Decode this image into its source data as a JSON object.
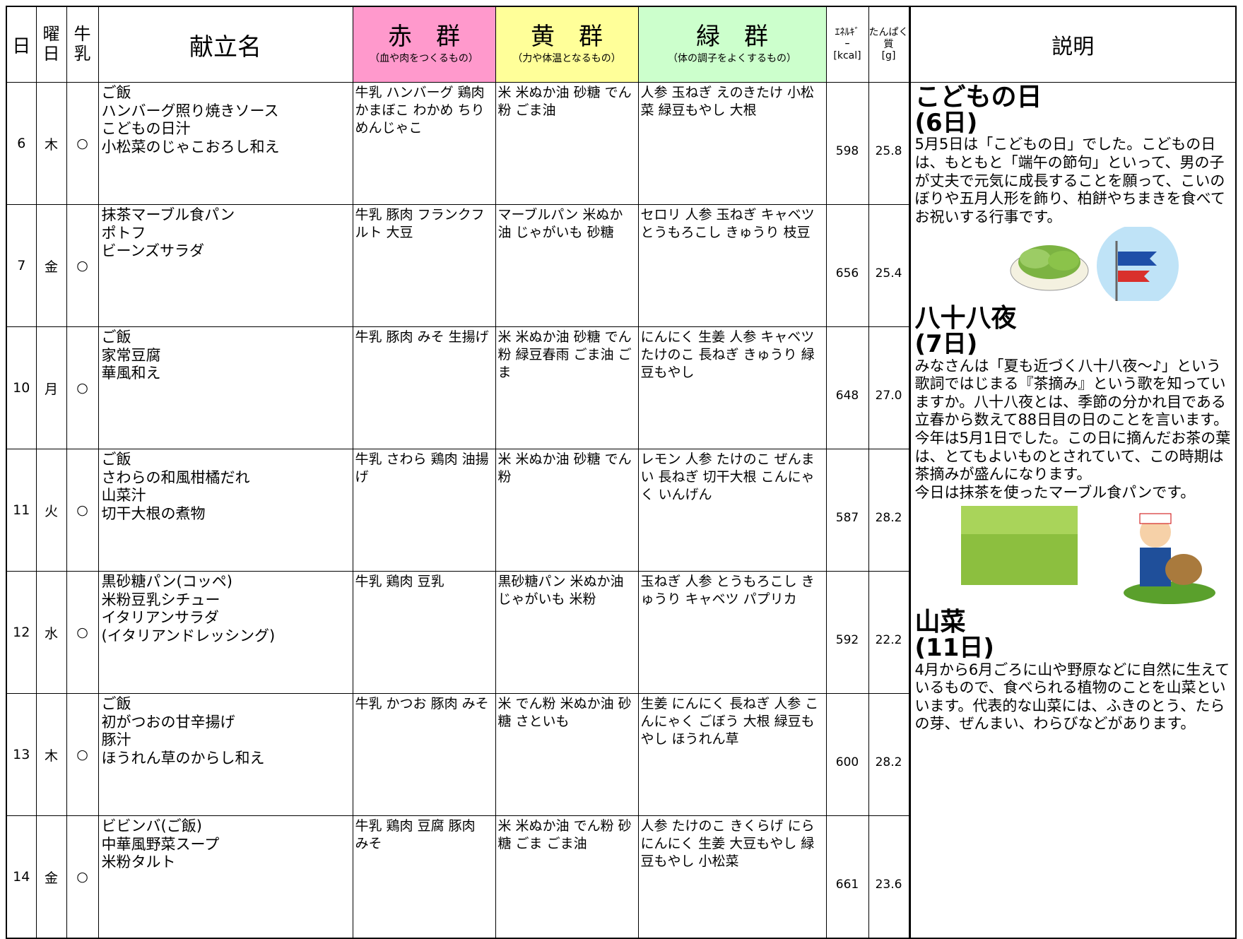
{
  "header": {
    "day": "日",
    "weekday": "曜日",
    "milk": "牛乳",
    "menu": "献立名",
    "red": {
      "title": "赤　群",
      "note": "（血や肉をつくるもの）"
    },
    "yellow": {
      "title": "黄　群",
      "note": "（力や体温となるもの）"
    },
    "green": {
      "title": "緑　群",
      "note": "（体の調子をよくするもの）"
    },
    "energy": {
      "title": "ｴﾈﾙｷﾞｰ",
      "unit": "[kcal]"
    },
    "protein": {
      "title": "たんぱく質",
      "unit": "[g]"
    },
    "explanation": "説明"
  },
  "rows": [
    {
      "day": "6",
      "weekday": "木",
      "milk": "○",
      "menu": [
        "ご飯",
        "ハンバーグ照り焼きソース",
        "こどもの日汁",
        "小松菜のじゃこおろし和え"
      ],
      "red": "牛乳 ハンバーグ 鶏肉 かまぼこ わかめ ちりめんじゃこ",
      "yellow": "米 米ぬか油 砂糖 でん粉 ごま油",
      "green": "人参 玉ねぎ えのきたけ 小松菜 緑豆もやし 大根",
      "energy": "598",
      "protein": "25.8"
    },
    {
      "day": "7",
      "weekday": "金",
      "milk": "○",
      "menu": [
        "抹茶マーブル食パン",
        "ポトフ",
        "ビーンズサラダ"
      ],
      "red": "牛乳 豚肉 フランクフルト 大豆",
      "yellow": "マーブルパン 米ぬか油 じゃがいも 砂糖",
      "green": "セロリ 人参 玉ねぎ キャベツ とうもろこし きゅうり 枝豆",
      "energy": "656",
      "protein": "25.4"
    },
    {
      "day": "10",
      "weekday": "月",
      "milk": "○",
      "menu": [
        "ご飯",
        "家常豆腐",
        "華風和え"
      ],
      "red": "牛乳 豚肉 みそ 生揚げ",
      "yellow": "米 米ぬか油 砂糖 でん粉 緑豆春雨 ごま油 ごま",
      "green": "にんにく 生姜 人参 キャベツ たけのこ 長ねぎ きゅうり 緑豆もやし",
      "energy": "648",
      "protein": "27.0"
    },
    {
      "day": "11",
      "weekday": "火",
      "milk": "○",
      "menu": [
        "ご飯",
        "さわらの和風柑橘だれ",
        "山菜汁",
        "切干大根の煮物"
      ],
      "red": "牛乳 さわら 鶏肉 油揚げ",
      "yellow": "米 米ぬか油 砂糖 でん粉",
      "green": "レモン 人参 たけのこ ぜんまい 長ねぎ 切干大根 こんにゃく いんげん",
      "energy": "587",
      "protein": "28.2"
    },
    {
      "day": "12",
      "weekday": "水",
      "milk": "○",
      "menu": [
        "黒砂糖パン(コッペ)",
        "米粉豆乳シチュー",
        "イタリアンサラダ",
        "(イタリアンドレッシング)"
      ],
      "red": "牛乳 鶏肉 豆乳",
      "yellow": "黒砂糖パン 米ぬか油 じゃがいも 米粉",
      "green": "玉ねぎ 人参 とうもろこし きゅうり キャベツ パプリカ",
      "energy": "592",
      "protein": "22.2"
    },
    {
      "day": "13",
      "weekday": "木",
      "milk": "○",
      "menu": [
        "ご飯",
        "初がつおの甘辛揚げ",
        "豚汁",
        "ほうれん草のからし和え"
      ],
      "red": "牛乳 かつお 豚肉 みそ",
      "yellow": "米 でん粉 米ぬか油 砂糖 さといも",
      "green": "生姜 にんにく 長ねぎ 人参 こんにゃく ごぼう 大根 緑豆もやし ほうれん草",
      "energy": "600",
      "protein": "28.2"
    },
    {
      "day": "14",
      "weekday": "金",
      "milk": "○",
      "menu": [
        "ビビンバ(ご飯)",
        "中華風野菜スープ",
        "米粉タルト"
      ],
      "red": "牛乳 鶏肉 豆腐 豚肉 みそ",
      "yellow": "米 米ぬか油 でん粉 砂糖 ごま ごま油",
      "green": "人参 たけのこ きくらげ にら にんにく 生姜 大豆もやし 緑豆もやし 小松菜",
      "energy": "661",
      "protein": "23.6"
    }
  ],
  "sections": [
    {
      "title": "こどもの日",
      "date": "(6日)",
      "paragraphs": [
        "5月5日は「こどもの日」でした。こどもの日は、もともと「端午の節句」といって、男の子が丈夫で元気に成長することを願って、こいのぼりや五月人形を飾り、柏餅やちまきを食べてお祝いする行事です。"
      ]
    },
    {
      "title": "八十八夜",
      "date": "(7日)",
      "paragraphs": [
        "みなさんは「夏も近づく八十八夜～♪」という歌詞ではじまる『茶摘み』という歌を知っていますか。八十八夜とは、季節の分かれ目である立春から数えて88日目の日のことを言います。今年は5月1日でした。この日に摘んだお茶の葉は、とてもよいものとされていて、この時期は茶摘みが盛んになります。",
        "今日は抹茶を使ったマーブル食パンです。"
      ]
    },
    {
      "title": "山菜",
      "date": "(11日)",
      "paragraphs": [
        "4月から6月ごろに山や野原などに自然に生えているもので、食べられる植物のことを山菜といいます。代表的な山菜には、ふきのとう、たらの芽、ぜんまい、わらびなどがあります。"
      ]
    }
  ]
}
